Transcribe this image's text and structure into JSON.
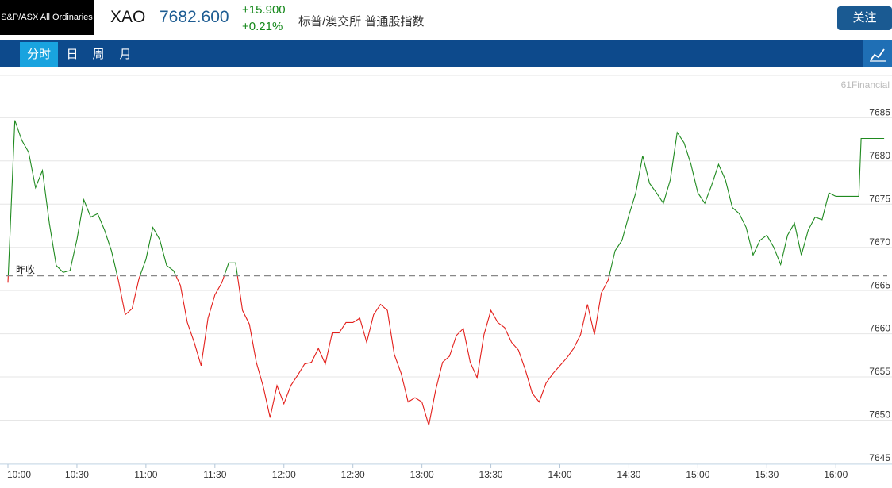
{
  "header": {
    "index_name": "S&P/ASX All Ordinaries",
    "symbol": "XAO",
    "price": "7682.600",
    "change": "+15.900",
    "change_pct": "+0.21%",
    "description": "标普/澳交所 普通股指数",
    "follow_button": "关注"
  },
  "tabs": [
    "分时",
    "日",
    "周",
    "月"
  ],
  "chart_data": {
    "type": "line",
    "watermark": "61Financial",
    "x": [
      "10:00",
      "10:03",
      "10:06",
      "10:09",
      "10:12",
      "10:15",
      "10:18",
      "10:21",
      "10:24",
      "10:27",
      "10:30",
      "10:33",
      "10:36",
      "10:39",
      "10:42",
      "10:45",
      "10:48",
      "10:51",
      "10:54",
      "10:57",
      "11:00",
      "11:03",
      "11:06",
      "11:09",
      "11:12",
      "11:15",
      "11:18",
      "11:21",
      "11:24",
      "11:27",
      "11:30",
      "11:33",
      "11:36",
      "11:39",
      "11:42",
      "11:45",
      "11:48",
      "11:51",
      "11:54",
      "11:57",
      "12:00",
      "12:03",
      "12:06",
      "12:09",
      "12:12",
      "12:15",
      "12:18",
      "12:21",
      "12:24",
      "12:27",
      "12:30",
      "12:33",
      "12:36",
      "12:39",
      "12:42",
      "12:45",
      "12:48",
      "12:51",
      "12:54",
      "12:57",
      "13:00",
      "13:03",
      "13:06",
      "13:09",
      "13:12",
      "13:15",
      "13:18",
      "13:21",
      "13:24",
      "13:27",
      "13:30",
      "13:33",
      "13:36",
      "13:39",
      "13:42",
      "13:45",
      "13:48",
      "13:51",
      "13:54",
      "13:57",
      "14:00",
      "14:03",
      "14:06",
      "14:09",
      "14:12",
      "14:15",
      "14:18",
      "14:21",
      "14:24",
      "14:27",
      "14:30",
      "14:33",
      "14:36",
      "14:39",
      "14:42",
      "14:45",
      "14:48",
      "14:51",
      "14:54",
      "14:57",
      "15:00",
      "15:03",
      "15:06",
      "15:09",
      "15:12",
      "15:15",
      "15:18",
      "15:21",
      "15:24",
      "15:27",
      "15:30",
      "15:33",
      "15:36",
      "15:39",
      "15:42",
      "15:45",
      "15:48",
      "15:51",
      "15:54",
      "15:57",
      "16:00",
      "16:10",
      "16:11",
      "16:21"
    ],
    "series": [
      {
        "color_above": "#1f8a1f",
        "color_below": "#e3201c",
        "values": [
          7665.9,
          7684.7,
          7682.4,
          7681.0,
          7676.9,
          7678.9,
          7672.8,
          7667.9,
          7667.1,
          7667.3,
          7670.9,
          7675.5,
          7673.5,
          7673.9,
          7672.0,
          7669.6,
          7666.2,
          7662.2,
          7662.9,
          7666.4,
          7668.6,
          7672.3,
          7670.9,
          7667.9,
          7667.3,
          7665.6,
          7661.3,
          7659.0,
          7656.3,
          7661.8,
          7664.5,
          7665.9,
          7668.2,
          7668.2,
          7662.7,
          7661.1,
          7656.7,
          7653.9,
          7650.3,
          7654.0,
          7651.9,
          7654.0,
          7655.2,
          7656.5,
          7656.7,
          7658.3,
          7656.5,
          7660.1,
          7660.1,
          7661.3,
          7661.3,
          7661.8,
          7659.0,
          7662.2,
          7663.4,
          7662.7,
          7657.6,
          7655.4,
          7652.1,
          7652.6,
          7652.1,
          7649.4,
          7653.5,
          7656.7,
          7657.4,
          7659.8,
          7660.6,
          7656.7,
          7654.9,
          7659.9,
          7662.7,
          7661.3,
          7660.7,
          7659.0,
          7658.1,
          7655.8,
          7653.1,
          7652.1,
          7654.3,
          7655.4,
          7656.3,
          7657.2,
          7658.3,
          7659.9,
          7663.4,
          7659.9,
          7664.7,
          7666.2,
          7669.6,
          7670.8,
          7673.7,
          7676.3,
          7680.6,
          7677.4,
          7676.3,
          7675.1,
          7677.8,
          7683.3,
          7682.1,
          7679.6,
          7676.3,
          7675.1,
          7677.2,
          7679.6,
          7677.8,
          7674.6,
          7673.9,
          7672.3,
          7669.1,
          7670.8,
          7671.4,
          7670.0,
          7668.0,
          7671.4,
          7672.8,
          7669.1,
          7672.0,
          7673.5,
          7673.2,
          7676.3,
          7675.9,
          7675.9,
          7682.6,
          7682.6
        ]
      }
    ],
    "reference": {
      "label": "昨收",
      "value": 7666.7,
      "color": "#888888"
    },
    "xlim": [
      "10:00",
      "16:22"
    ],
    "xticks": [
      "10:00",
      "10:30",
      "11:00",
      "11:30",
      "12:00",
      "12:30",
      "13:00",
      "13:30",
      "14:00",
      "14:30",
      "15:00",
      "15:30",
      "16:00"
    ],
    "ylim": [
      7644.9,
      7689.9
    ],
    "yticks": [
      7645,
      7650,
      7655,
      7660,
      7665,
      7670,
      7675,
      7680,
      7685
    ],
    "grid": true
  }
}
